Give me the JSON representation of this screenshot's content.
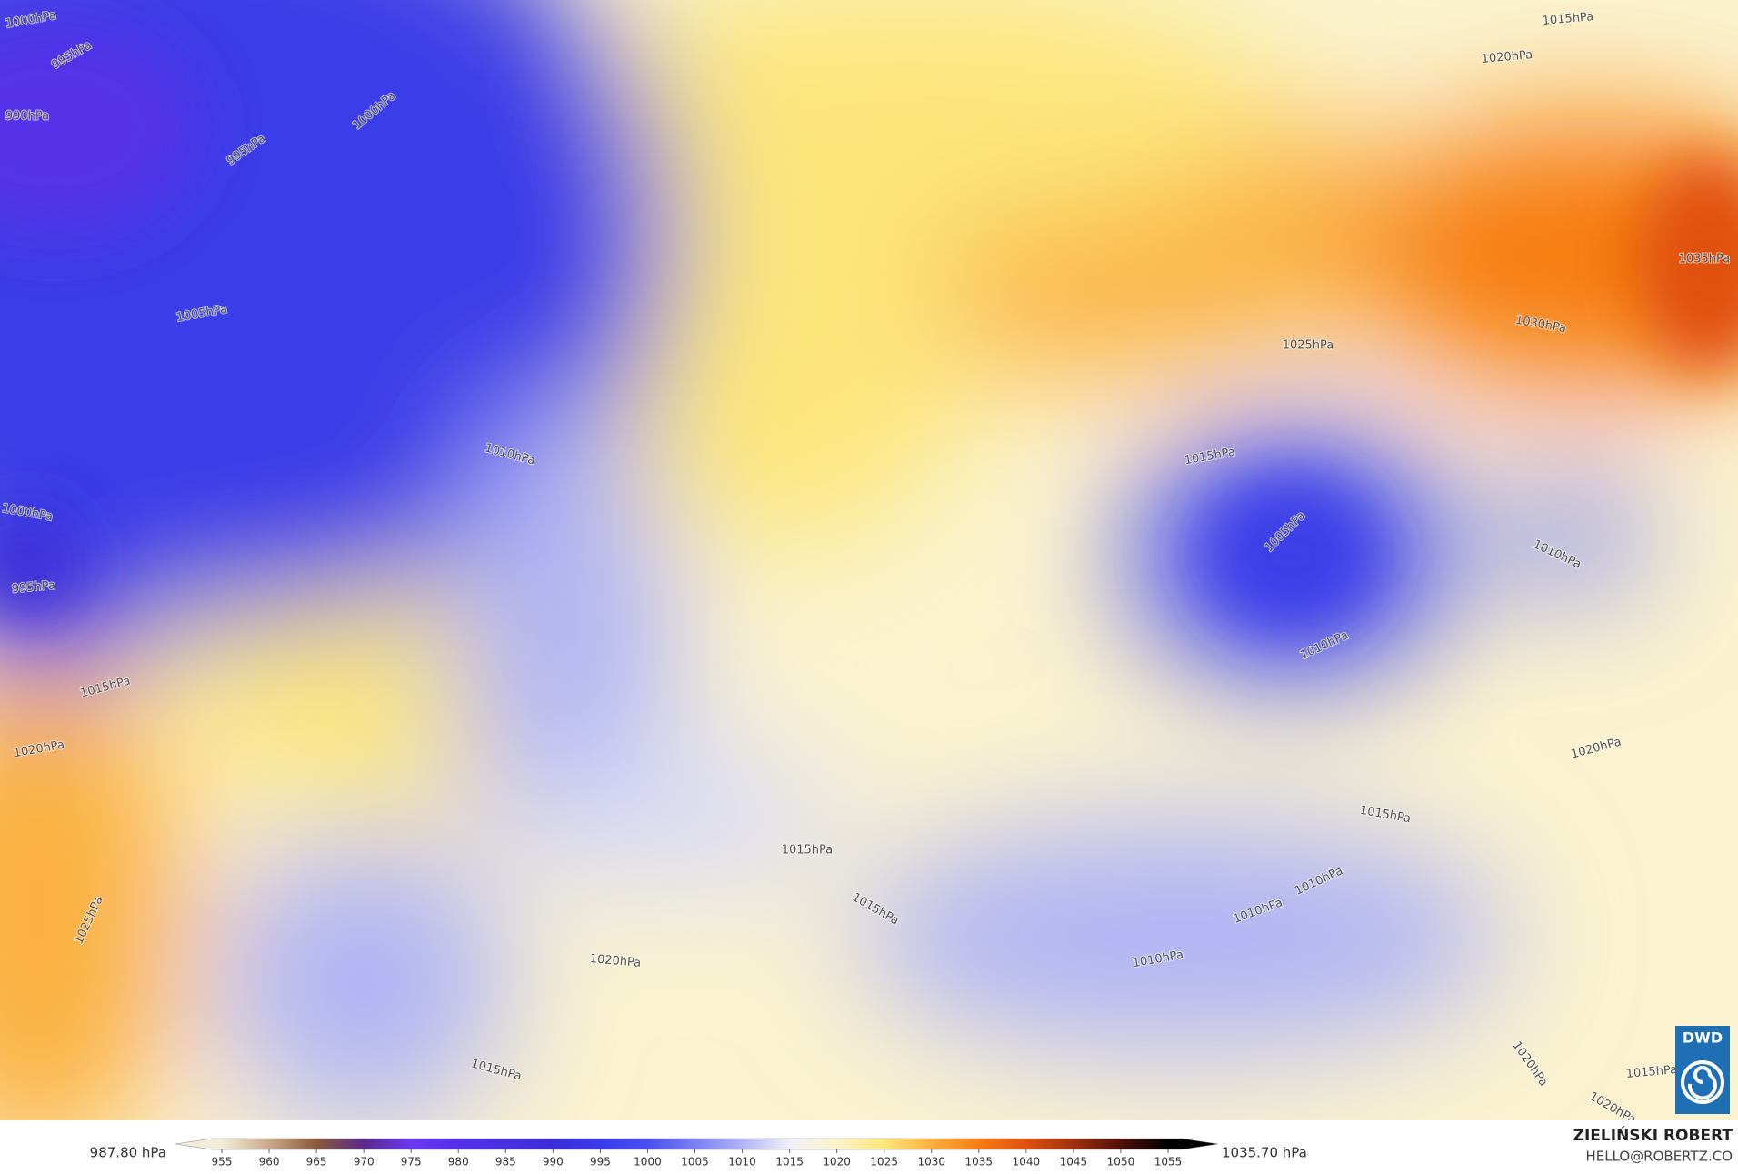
{
  "map": {
    "isobar_labels": [
      "1015hPa",
      "1020hPa",
      "1000hPa",
      "995hPa",
      "990hPa",
      "1000hPa",
      "995hPa",
      "1005hPa",
      "1035hPa",
      "1030hPa",
      "1025hPa",
      "1010hPa",
      "1015hPa",
      "1005hPa",
      "1010hPa",
      "1000hPa",
      "995hPa",
      "1010hPa",
      "1015hPa",
      "1020hPa",
      "1020hPa",
      "1015hPa",
      "1015hPa",
      "1025hPa",
      "1010hPa",
      "1010hPa",
      "1015hPa",
      "1020hPa",
      "1010hPa",
      "1015hPa",
      "1020hPa",
      "1015hPa",
      "1020hPa"
    ]
  },
  "colorbar": {
    "min_label": "987.80 hPa",
    "max_label": "1035.70 hPa",
    "ticks": [
      955,
      960,
      965,
      970,
      975,
      980,
      985,
      990,
      995,
      1000,
      1005,
      1010,
      1015,
      1020,
      1025,
      1030,
      1035,
      1040,
      1045,
      1050,
      1055
    ],
    "colors": [
      "#f3ecd8",
      "#c9a98a",
      "#8a5a3a",
      "#5a2a8a",
      "#6a3af0",
      "#5530e8",
      "#4a30e0",
      "#3a2ed8",
      "#3a3ce8",
      "#4a50ef",
      "#7a80f2",
      "#b0b4f5",
      "#f0f0fa",
      "#fbf3c8",
      "#fce67a",
      "#fbb040",
      "#f77c10",
      "#e05010",
      "#a03010",
      "#501008",
      "#000000"
    ]
  },
  "credits": {
    "author": "ZIELIŃSKI ROBERT",
    "email": "HELLO@ROBERTZ.CO"
  },
  "logo": "DWD"
}
